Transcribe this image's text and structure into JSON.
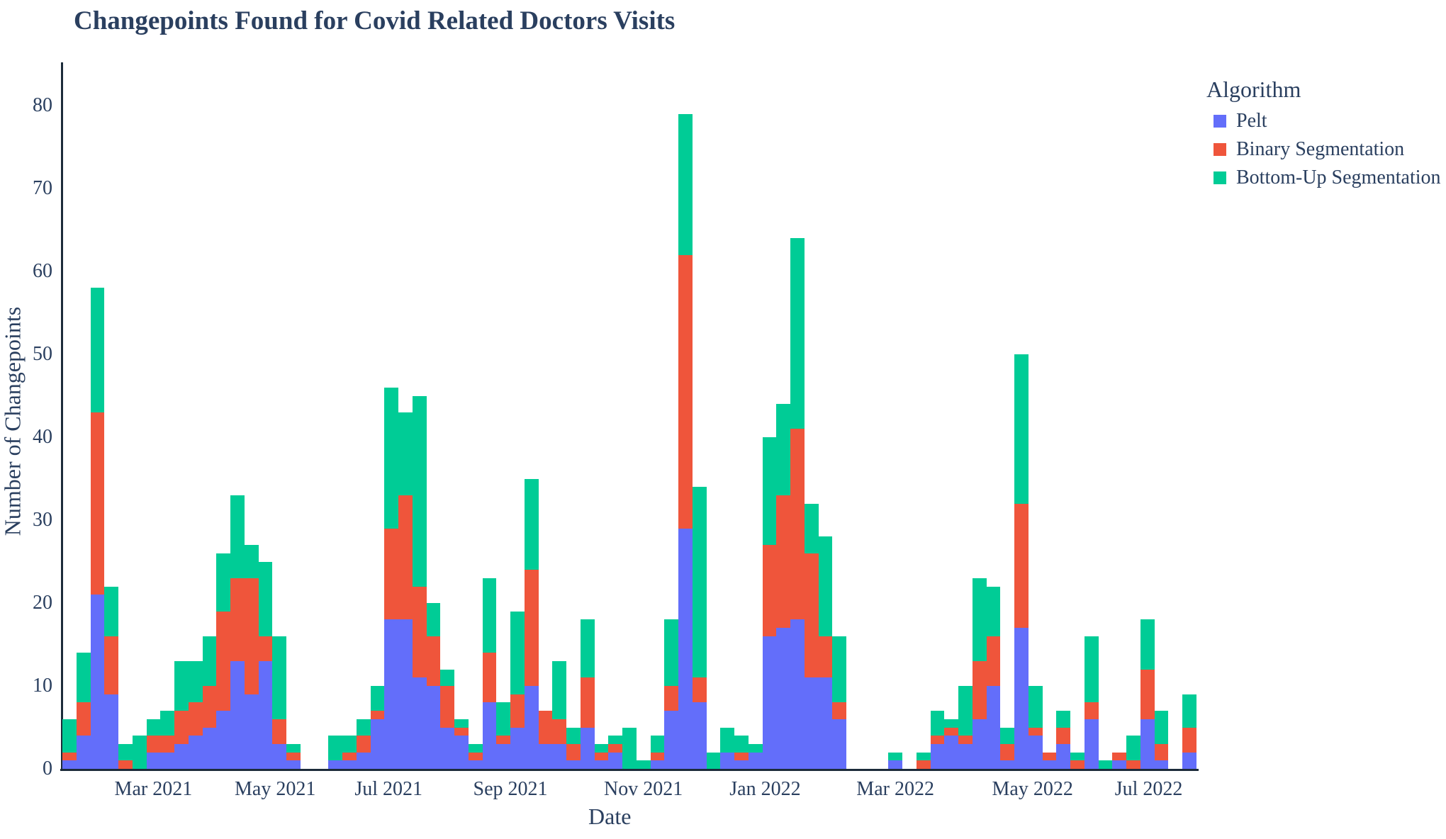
{
  "page": {
    "background": "#ffffff",
    "text_color": "#2a3f5f",
    "axis_line_color": "#1c2b3a"
  },
  "legend": {
    "title": "Algorithm"
  },
  "chart_data": {
    "type": "bar",
    "stacked": true,
    "orientation": "vertical",
    "title": "Changepoints Found for Covid Related Doctors Visits",
    "xlabel": "Date",
    "ylabel": "Number of Changepoints",
    "ylim": [
      0,
      85
    ],
    "grid": false,
    "legend_position": "right",
    "y_ticks": [
      0,
      10,
      20,
      30,
      40,
      50,
      60,
      70,
      80
    ],
    "x_tick_labels": [
      "Mar 2021",
      "May 2021",
      "Jul 2021",
      "Sep 2021",
      "Nov 2021",
      "Jan 2022",
      "Mar 2022",
      "May 2022",
      "Jul 2022"
    ],
    "x_tick_positions_week_units": [
      6.5,
      15.2,
      23.3,
      32.0,
      41.5,
      50.2,
      59.5,
      69.3,
      77.6
    ],
    "x_unit": "week index (weekly bins, Feb 2021 - Jul 2022)",
    "n_bins": 81,
    "series": [
      {
        "name": "Pelt",
        "color": "#636EFA",
        "values": [
          1,
          4,
          21,
          9,
          0,
          0,
          2,
          2,
          3,
          4,
          5,
          7,
          13,
          9,
          13,
          3,
          1,
          0,
          0,
          1,
          1,
          2,
          6,
          18,
          18,
          11,
          10,
          5,
          4,
          1,
          8,
          3,
          5,
          10,
          3,
          3,
          1,
          5,
          1,
          2,
          0,
          0,
          1,
          7,
          29,
          8,
          0,
          2,
          1,
          2,
          16,
          17,
          18,
          11,
          11,
          6,
          0,
          0,
          0,
          1,
          0,
          0,
          3,
          4,
          3,
          6,
          10,
          1,
          17,
          4,
          1,
          3,
          0,
          6,
          0,
          1,
          0,
          6,
          1,
          0,
          2
        ]
      },
      {
        "name": "Binary Segmentation",
        "color": "#EF553B",
        "values": [
          1,
          4,
          22,
          7,
          1,
          0,
          2,
          2,
          4,
          4,
          5,
          12,
          10,
          14,
          3,
          3,
          1,
          0,
          0,
          0,
          1,
          2,
          1,
          11,
          15,
          11,
          6,
          5,
          1,
          1,
          6,
          1,
          4,
          14,
          4,
          3,
          2,
          6,
          1,
          1,
          0,
          0,
          1,
          3,
          33,
          3,
          0,
          0,
          1,
          0,
          11,
          16,
          23,
          15,
          5,
          2,
          0,
          0,
          0,
          0,
          0,
          1,
          1,
          1,
          1,
          7,
          6,
          2,
          15,
          1,
          1,
          2,
          1,
          2,
          0,
          1,
          1,
          6,
          2,
          0,
          3
        ]
      },
      {
        "name": "Bottom-Up Segmentation",
        "color": "#00CC96",
        "values": [
          4,
          6,
          15,
          6,
          2,
          4,
          2,
          3,
          6,
          5,
          6,
          7,
          10,
          4,
          9,
          10,
          1,
          0,
          0,
          3,
          2,
          2,
          3,
          17,
          10,
          23,
          4,
          2,
          1,
          1,
          9,
          4,
          10,
          11,
          0,
          7,
          2,
          7,
          1,
          1,
          5,
          1,
          2,
          8,
          17,
          23,
          2,
          3,
          2,
          1,
          13,
          11,
          23,
          6,
          12,
          8,
          0,
          0,
          0,
          1,
          0,
          1,
          3,
          1,
          6,
          10,
          6,
          2,
          18,
          5,
          0,
          2,
          1,
          8,
          1,
          0,
          3,
          6,
          4,
          0,
          4
        ]
      }
    ]
  }
}
